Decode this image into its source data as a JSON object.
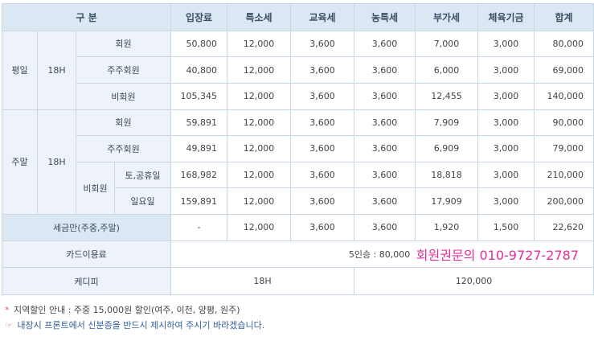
{
  "header": {
    "category": "구 분",
    "columns": [
      "입장료",
      "특소세",
      "교육세",
      "농특세",
      "부가세",
      "체육기금",
      "합계"
    ]
  },
  "weekday": {
    "label": "평일",
    "time": "18H",
    "rows": [
      {
        "label": "회원",
        "values": [
          "50,800",
          "12,000",
          "3,600",
          "3,600",
          "7,000",
          "3,000",
          "80,000"
        ]
      },
      {
        "label": "주주회원",
        "values": [
          "40,800",
          "12,000",
          "3,600",
          "3,600",
          "6,000",
          "3,000",
          "69,000"
        ]
      },
      {
        "label": "비회원",
        "values": [
          "105,345",
          "12,000",
          "3,600",
          "3,600",
          "12,455",
          "3,000",
          "140,000"
        ]
      }
    ]
  },
  "weekend": {
    "label": "주말",
    "time": "18H",
    "rows": [
      {
        "label": "회원",
        "values": [
          "59,891",
          "12,000",
          "3,600",
          "3,600",
          "7,909",
          "3,000",
          "90,000"
        ]
      },
      {
        "label": "주주회원",
        "values": [
          "49,891",
          "12,000",
          "3,600",
          "3,600",
          "6,909",
          "3,000",
          "79,000"
        ]
      }
    ],
    "nonmember": {
      "label": "비회원",
      "rows": [
        {
          "label": "토,공휴일",
          "values": [
            "168,982",
            "12,000",
            "3,600",
            "3,600",
            "18,818",
            "3,000",
            "210,000"
          ]
        },
        {
          "label": "일요일",
          "values": [
            "159,891",
            "12,000",
            "3,600",
            "3,600",
            "17,909",
            "3,000",
            "200,000"
          ]
        }
      ]
    }
  },
  "tax_exempt": {
    "label": "세금만(주중,주말)",
    "values": [
      "-",
      "12,000",
      "3,600",
      "3,600",
      "1,920",
      "1,500",
      "22,620"
    ]
  },
  "card": {
    "label": "카드이용료",
    "value": "5인승 : 80,000",
    "phone": "회원권문의 010-9727-2787"
  },
  "caddie": {
    "label": "케디피",
    "time": "18H",
    "value": "120,000"
  },
  "notes": {
    "mark1": "*",
    "line1": "지역할인 안내 : 주중 15,000원 할인(여주, 이천, 양평, 원주)",
    "mark2": "☞",
    "line2": "내장시 프론트에서 신분증을 반드시 제시하여 주시기 바라겠습니다."
  },
  "colors": {
    "header_bg": "#dbe8f4",
    "label_bg": "#eef3f9",
    "border": "#c9d6e3",
    "phone": "#e0309a",
    "note_blue": "#2f5f9a"
  }
}
